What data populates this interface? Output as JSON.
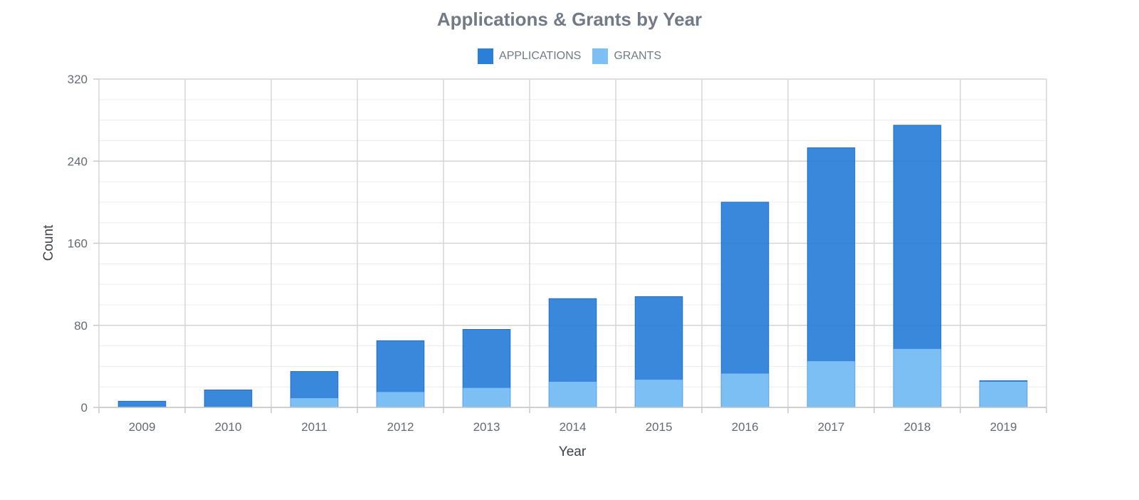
{
  "chart_data": {
    "type": "bar",
    "stacking": "overlay",
    "title": "Applications & Grants by Year",
    "xlabel": "Year",
    "ylabel": "Count",
    "ylim": [
      0,
      320
    ],
    "yticks": [
      0,
      80,
      160,
      240,
      320
    ],
    "grid": true,
    "legend_position": "top-center",
    "categories": [
      "2009",
      "2010",
      "2011",
      "2012",
      "2013",
      "2014",
      "2015",
      "2016",
      "2017",
      "2018",
      "2019"
    ],
    "series": [
      {
        "name": "APPLICATIONS",
        "color": "#2a7fd8",
        "values": [
          6,
          17,
          35,
          65,
          76,
          106,
          108,
          200,
          253,
          275,
          26
        ]
      },
      {
        "name": "GRANTS",
        "color": "#7cbff5",
        "values": [
          0,
          0,
          9,
          15,
          19,
          25,
          27,
          33,
          45,
          57,
          25
        ]
      }
    ]
  }
}
